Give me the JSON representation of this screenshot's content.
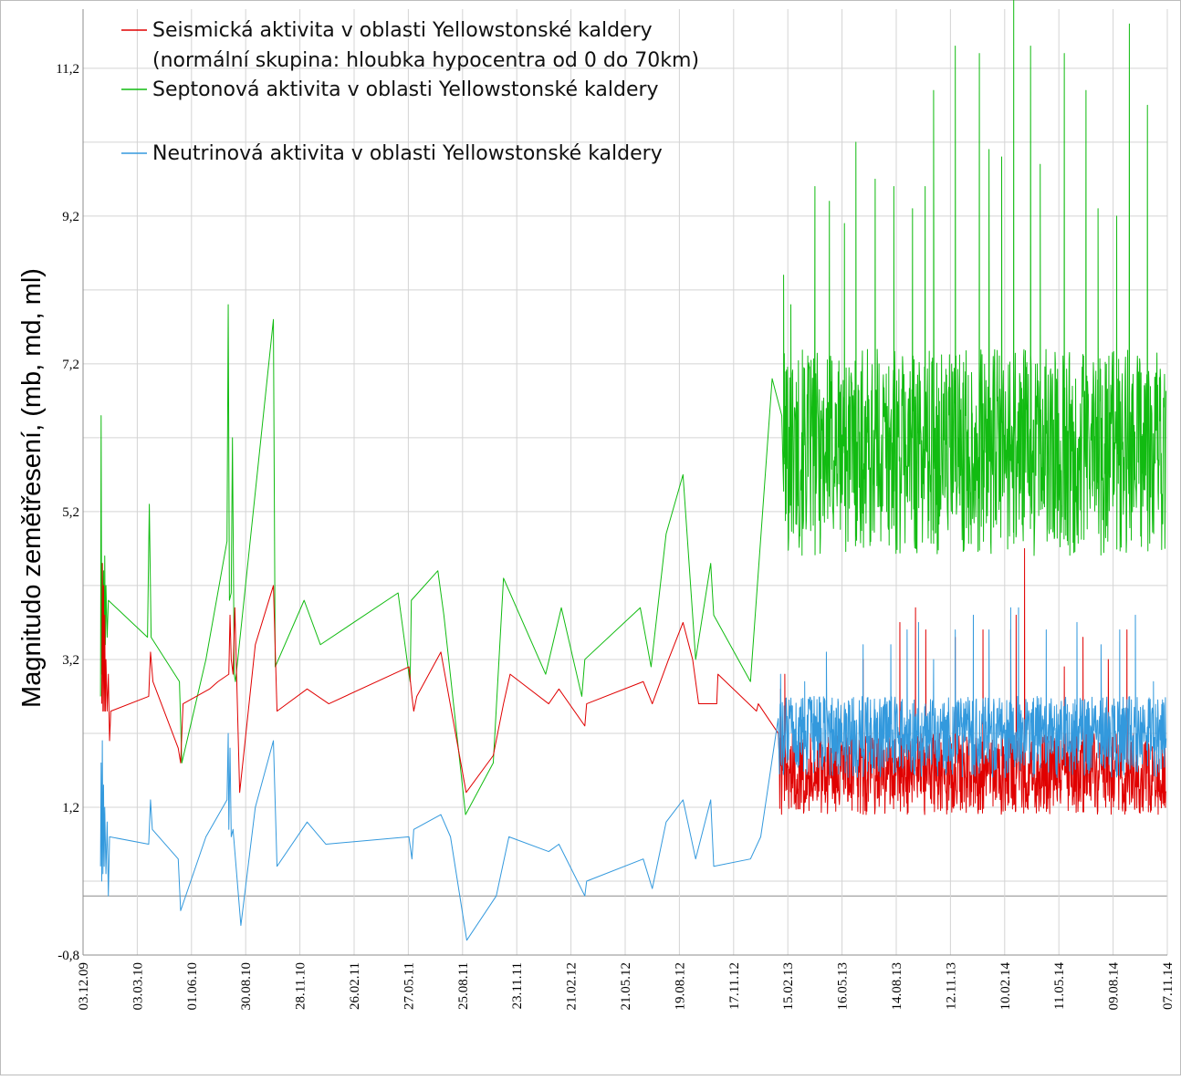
{
  "chart_data": {
    "type": "line",
    "title": "",
    "ylabel": "Magnitudo zemětřesení, (mb, md, ml)",
    "xlabel": "",
    "ylim": [
      -0.8,
      12.0
    ],
    "yticks": [
      "-0,8",
      "1,2",
      "3,2",
      "5,2",
      "7,2",
      "9,2",
      "11,2"
    ],
    "x_range": [
      "2009-12-03",
      "2014-11-07"
    ],
    "xticks": [
      "03.12.09",
      "03.03.10",
      "01.06.10",
      "30.08.10",
      "28.11.10",
      "26.02.11",
      "27.05.11",
      "25.08.11",
      "23.11.11",
      "21.02.12",
      "21.05.12",
      "19.08.12",
      "17.11.12",
      "15.02.13",
      "16.05.13",
      "14.08.13",
      "12.11.13",
      "10.02.14",
      "11.05.14",
      "09.08.14",
      "07.11.14"
    ],
    "grid": true,
    "legend_position": "top-left",
    "colors": {
      "seismic": "#e00000",
      "septon": "#11bb11",
      "neutrino": "#3399dd",
      "grid": "#d4d4d4"
    },
    "legend": [
      {
        "key": "seismic",
        "label_lines": [
          "Seismická aktivita v oblasti Yellowstonské kaldery",
          "(normální skupina: hloubka hypocentra od 0 do 70km)"
        ]
      },
      {
        "key": "septon",
        "label_lines": [
          "Septonová aktivita v oblasti Yellowstonské kaldery"
        ]
      },
      {
        "key": "neutrino",
        "label_lines": [
          "Neutrinová aktivita v oblasti Yellowstonské kaldery"
        ]
      }
    ],
    "series": [
      {
        "key": "seismic",
        "name": "Seismická aktivita v oblasti Yellowstonské kaldery (normální skupina: hloubka hypocentra od 0 do 70km)",
        "points": [
          [
            "2010-01-03",
            2.6
          ],
          [
            "2010-01-04",
            4.5
          ],
          [
            "2010-01-05",
            2.5
          ],
          [
            "2010-01-06",
            4.2
          ],
          [
            "2010-01-07",
            2.5
          ],
          [
            "2010-01-08",
            3.8
          ],
          [
            "2010-01-09",
            2.5
          ],
          [
            "2010-01-10",
            3.2
          ],
          [
            "2010-01-12",
            2.5
          ],
          [
            "2010-01-14",
            3.0
          ],
          [
            "2010-01-16",
            2.1
          ],
          [
            "2010-01-18",
            2.5
          ],
          [
            "2010-03-22",
            2.7
          ],
          [
            "2010-03-25",
            3.3
          ],
          [
            "2010-03-29",
            2.9
          ],
          [
            "2010-05-10",
            2.0
          ],
          [
            "2010-05-14",
            1.8
          ],
          [
            "2010-05-18",
            2.6
          ],
          [
            "2010-07-01",
            2.8
          ],
          [
            "2010-07-15",
            2.9
          ],
          [
            "2010-08-02",
            3.0
          ],
          [
            "2010-08-04",
            3.8
          ],
          [
            "2010-08-06",
            3.2
          ],
          [
            "2010-08-09",
            3.0
          ],
          [
            "2010-08-12",
            3.9
          ],
          [
            "2010-08-20",
            1.4
          ],
          [
            "2010-09-15",
            3.4
          ],
          [
            "2010-10-15",
            4.2
          ],
          [
            "2010-10-21",
            2.5
          ],
          [
            "2010-12-10",
            2.8
          ],
          [
            "2011-01-15",
            2.6
          ],
          [
            "2011-05-28",
            3.1
          ],
          [
            "2011-06-02",
            2.7
          ],
          [
            "2011-06-05",
            2.5
          ],
          [
            "2011-06-10",
            2.7
          ],
          [
            "2011-07-20",
            3.3
          ],
          [
            "2011-08-31",
            1.4
          ],
          [
            "2011-10-15",
            1.9
          ],
          [
            "2011-11-01",
            2.6
          ],
          [
            "2011-11-12",
            3.0
          ],
          [
            "2012-01-15",
            2.6
          ],
          [
            "2012-02-01",
            2.8
          ],
          [
            "2012-03-15",
            2.3
          ],
          [
            "2012-03-18",
            2.6
          ],
          [
            "2012-06-20",
            2.9
          ],
          [
            "2012-07-05",
            2.6
          ],
          [
            "2012-08-01",
            3.2
          ],
          [
            "2012-08-25",
            3.7
          ],
          [
            "2012-09-10",
            3.2
          ],
          [
            "2012-09-20",
            2.6
          ],
          [
            "2012-10-20",
            2.6
          ],
          [
            "2012-10-22",
            3.0
          ],
          [
            "2012-12-25",
            2.5
          ],
          [
            "2012-12-28",
            2.6
          ],
          [
            "2013-01-30",
            2.2
          ]
        ],
        "dense_band": {
          "from": "2013-02-01",
          "to": "2014-11-05",
          "low": 1.1,
          "high": 2.2,
          "spikes": [
            [
              "2013-02-03",
              2.8
            ],
            [
              "2013-02-10",
              3.0
            ],
            [
              "2013-06-20",
              3.2
            ],
            [
              "2013-08-20",
              3.7
            ],
            [
              "2013-09-15",
              3.9
            ],
            [
              "2013-10-02",
              3.6
            ],
            [
              "2013-11-20",
              3.5
            ],
            [
              "2014-01-05",
              3.6
            ],
            [
              "2014-02-20",
              3.6
            ],
            [
              "2014-03-01",
              3.8
            ],
            [
              "2014-03-15",
              4.7
            ],
            [
              "2014-05-20",
              3.1
            ],
            [
              "2014-06-20",
              3.5
            ],
            [
              "2014-08-01",
              3.2
            ],
            [
              "2014-09-01",
              3.6
            ]
          ]
        }
      },
      {
        "key": "septon",
        "name": "Septonová aktivita v oblasti Yellowstonské kaldery",
        "points": [
          [
            "2010-01-01",
            2.7
          ],
          [
            "2010-01-02",
            6.5
          ],
          [
            "2010-01-03",
            3.0
          ],
          [
            "2010-01-04",
            4.5
          ],
          [
            "2010-01-05",
            3.2
          ],
          [
            "2010-01-06",
            4.4
          ],
          [
            "2010-01-07",
            3.0
          ],
          [
            "2010-01-08",
            4.6
          ],
          [
            "2010-01-09",
            3.4
          ],
          [
            "2010-01-10",
            4.2
          ],
          [
            "2010-01-12",
            3.5
          ],
          [
            "2010-01-14",
            4.0
          ],
          [
            "2010-03-20",
            3.5
          ],
          [
            "2010-03-23",
            5.3
          ],
          [
            "2010-03-26",
            3.5
          ],
          [
            "2010-05-12",
            2.9
          ],
          [
            "2010-05-16",
            1.8
          ],
          [
            "2010-06-25",
            3.2
          ],
          [
            "2010-07-30",
            4.8
          ],
          [
            "2010-08-01",
            8.0
          ],
          [
            "2010-08-03",
            4.0
          ],
          [
            "2010-08-06",
            4.1
          ],
          [
            "2010-08-08",
            6.2
          ],
          [
            "2010-08-11",
            3.0
          ],
          [
            "2010-08-13",
            2.9
          ],
          [
            "2010-10-15",
            7.8
          ],
          [
            "2010-10-18",
            3.1
          ],
          [
            "2010-12-05",
            4.0
          ],
          [
            "2011-01-01",
            3.4
          ],
          [
            "2011-05-10",
            4.1
          ],
          [
            "2011-05-28",
            3.0
          ],
          [
            "2011-05-30",
            2.9
          ],
          [
            "2011-06-01",
            4.0
          ],
          [
            "2011-07-15",
            4.4
          ],
          [
            "2011-07-25",
            3.8
          ],
          [
            "2011-08-30",
            1.1
          ],
          [
            "2011-10-15",
            1.8
          ],
          [
            "2011-11-01",
            4.3
          ],
          [
            "2012-01-10",
            3.0
          ],
          [
            "2012-02-05",
            3.9
          ],
          [
            "2012-03-10",
            2.7
          ],
          [
            "2012-03-15",
            3.2
          ],
          [
            "2012-06-15",
            3.9
          ],
          [
            "2012-07-03",
            3.1
          ],
          [
            "2012-07-28",
            4.9
          ],
          [
            "2012-08-25",
            5.7
          ],
          [
            "2012-09-15",
            3.2
          ],
          [
            "2012-10-10",
            4.5
          ],
          [
            "2012-10-15",
            3.8
          ],
          [
            "2012-12-15",
            2.9
          ],
          [
            "2013-01-20",
            7.0
          ],
          [
            "2013-02-05",
            6.5
          ]
        ],
        "dense_band": {
          "from": "2013-02-08",
          "to": "2014-11-05",
          "low": 4.6,
          "high": 7.4,
          "spikes": [
            [
              "2013-02-08",
              8.4
            ],
            [
              "2013-02-20",
              8.0
            ],
            [
              "2013-04-01",
              9.6
            ],
            [
              "2013-04-25",
              9.4
            ],
            [
              "2013-05-20",
              9.1
            ],
            [
              "2013-06-08",
              10.2
            ],
            [
              "2013-07-10",
              9.7
            ],
            [
              "2013-08-10",
              9.6
            ],
            [
              "2013-09-10",
              9.3
            ],
            [
              "2013-10-01",
              9.6
            ],
            [
              "2013-10-15",
              10.9
            ],
            [
              "2013-11-20",
              11.5
            ],
            [
              "2013-12-30",
              11.4
            ],
            [
              "2014-01-15",
              10.1
            ],
            [
              "2014-02-05",
              10.0
            ],
            [
              "2014-02-25",
              12.2
            ],
            [
              "2014-03-25",
              11.5
            ],
            [
              "2014-04-10",
              9.9
            ],
            [
              "2014-05-20",
              11.4
            ],
            [
              "2014-06-25",
              10.9
            ],
            [
              "2014-07-15",
              9.3
            ],
            [
              "2014-08-15",
              9.2
            ],
            [
              "2014-09-05",
              11.8
            ],
            [
              "2014-10-05",
              10.7
            ]
          ]
        }
      },
      {
        "key": "neutrino",
        "name": "Neutrinová aktivita v oblasti Yellowstonské kaldery",
        "points": [
          [
            "2010-01-01",
            0.4
          ],
          [
            "2010-01-02",
            1.8
          ],
          [
            "2010-01-03",
            0.2
          ],
          [
            "2010-01-04",
            2.1
          ],
          [
            "2010-01-05",
            0.3
          ],
          [
            "2010-01-06",
            1.5
          ],
          [
            "2010-01-07",
            0.4
          ],
          [
            "2010-01-08",
            1.2
          ],
          [
            "2010-01-10",
            0.3
          ],
          [
            "2010-01-12",
            1.0
          ],
          [
            "2010-01-14",
            0.0
          ],
          [
            "2010-01-16",
            0.8
          ],
          [
            "2010-03-22",
            0.7
          ],
          [
            "2010-03-25",
            1.3
          ],
          [
            "2010-03-28",
            0.9
          ],
          [
            "2010-05-10",
            0.5
          ],
          [
            "2010-05-14",
            -0.2
          ],
          [
            "2010-06-25",
            0.8
          ],
          [
            "2010-07-30",
            1.3
          ],
          [
            "2010-08-01",
            2.2
          ],
          [
            "2010-08-02",
            0.9
          ],
          [
            "2010-08-04",
            2.0
          ],
          [
            "2010-08-06",
            0.8
          ],
          [
            "2010-08-09",
            0.9
          ],
          [
            "2010-08-22",
            -0.4
          ],
          [
            "2010-09-15",
            1.2
          ],
          [
            "2010-10-15",
            2.1
          ],
          [
            "2010-10-21",
            0.4
          ],
          [
            "2010-12-10",
            1.0
          ],
          [
            "2011-01-10",
            0.7
          ],
          [
            "2011-05-28",
            0.8
          ],
          [
            "2011-06-02",
            0.5
          ],
          [
            "2011-06-05",
            0.9
          ],
          [
            "2011-07-20",
            1.1
          ],
          [
            "2011-08-05",
            0.8
          ],
          [
            "2011-09-01",
            -0.6
          ],
          [
            "2011-10-20",
            0.0
          ],
          [
            "2011-11-10",
            0.8
          ],
          [
            "2012-01-15",
            0.6
          ],
          [
            "2012-02-01",
            0.7
          ],
          [
            "2012-03-15",
            0.0
          ],
          [
            "2012-03-18",
            0.2
          ],
          [
            "2012-06-20",
            0.5
          ],
          [
            "2012-07-05",
            0.1
          ],
          [
            "2012-07-28",
            1.0
          ],
          [
            "2012-08-25",
            1.3
          ],
          [
            "2012-09-15",
            0.5
          ],
          [
            "2012-10-10",
            1.3
          ],
          [
            "2012-10-15",
            0.4
          ],
          [
            "2012-12-15",
            0.5
          ],
          [
            "2013-01-01",
            0.8
          ],
          [
            "2013-01-30",
            2.4
          ]
        ],
        "dense_band": {
          "from": "2013-02-01",
          "to": "2014-11-05",
          "low": 1.6,
          "high": 2.7,
          "spikes": [
            [
              "2013-02-03",
              3.0
            ],
            [
              "2013-03-15",
              2.9
            ],
            [
              "2013-04-20",
              3.3
            ],
            [
              "2013-06-20",
              3.4
            ],
            [
              "2013-08-05",
              3.4
            ],
            [
              "2013-09-01",
              3.6
            ],
            [
              "2013-09-20",
              3.7
            ],
            [
              "2013-10-15",
              3.2
            ],
            [
              "2013-11-20",
              3.6
            ],
            [
              "2013-12-20",
              3.8
            ],
            [
              "2014-01-15",
              3.6
            ],
            [
              "2014-02-20",
              3.9
            ],
            [
              "2014-03-05",
              3.9
            ],
            [
              "2014-04-20",
              3.6
            ],
            [
              "2014-06-10",
              3.7
            ],
            [
              "2014-07-20",
              3.4
            ],
            [
              "2014-08-20",
              3.6
            ],
            [
              "2014-09-15",
              3.8
            ],
            [
              "2014-10-15",
              2.9
            ]
          ]
        }
      }
    ]
  }
}
